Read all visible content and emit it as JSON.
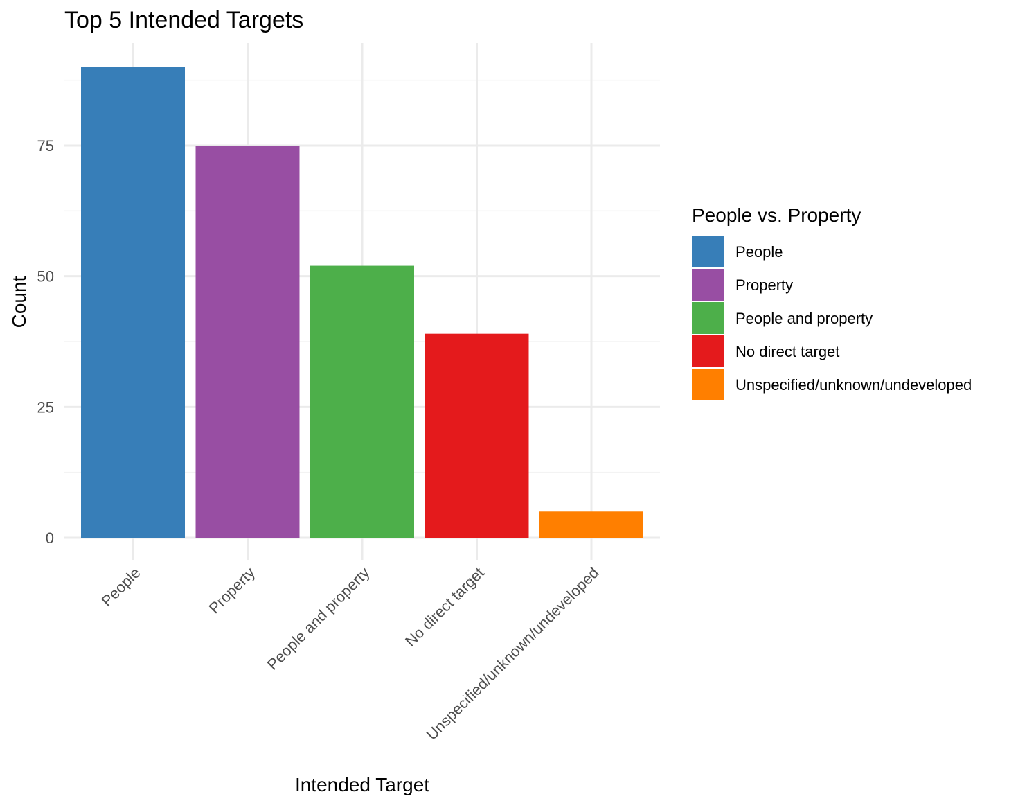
{
  "chart_data": {
    "type": "bar",
    "title": "Top 5 Intended Targets",
    "xlabel": "Intended Target",
    "ylabel": "Count",
    "categories": [
      "People",
      "Property",
      "People and property",
      "No direct target",
      "Unspecified/unknown/undeveloped"
    ],
    "values": [
      90,
      75,
      52,
      39,
      5
    ],
    "colors": [
      "#377eb8",
      "#984ea3",
      "#4daf4a",
      "#e41a1c",
      "#ff7f00"
    ],
    "ylim": [
      0,
      94
    ],
    "yticks": [
      0,
      25,
      50,
      75
    ],
    "ytick_labels": [
      "0",
      "25",
      "50",
      "75"
    ],
    "grid": true,
    "legend": {
      "title": "People vs. Property",
      "position": "right",
      "items": [
        "People",
        "Property",
        "People and property",
        "No direct target",
        "Unspecified/unknown/undeveloped"
      ]
    }
  }
}
